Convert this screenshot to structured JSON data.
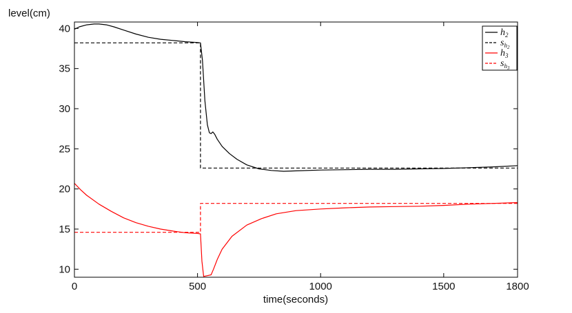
{
  "chart_data": {
    "type": "line",
    "title": "",
    "xlabel": "time(seconds)",
    "ylabel": "level(cm)",
    "xlim": [
      0,
      1800
    ],
    "ylim": [
      9,
      40.8
    ],
    "xticks": [
      0,
      500,
      1000,
      1500,
      1800
    ],
    "yticks": [
      10,
      15,
      20,
      25,
      30,
      35,
      40
    ],
    "grid": false,
    "legend_position": "top-right",
    "series": [
      {
        "name": "h2",
        "color": "#000000",
        "dash": "solid",
        "x": [
          0,
          20,
          50,
          80,
          100,
          130,
          160,
          200,
          250,
          300,
          350,
          400,
          450,
          500,
          512,
          520,
          530,
          540,
          548,
          555,
          562,
          570,
          580,
          600,
          630,
          660,
          700,
          750,
          800,
          850,
          900,
          1000,
          1100,
          1200,
          1300,
          1400,
          1500,
          1600,
          1700,
          1800
        ],
        "y": [
          39.9,
          40.2,
          40.45,
          40.55,
          40.55,
          40.45,
          40.2,
          39.8,
          39.3,
          38.9,
          38.65,
          38.5,
          38.35,
          38.25,
          38.2,
          36.0,
          31.0,
          28.0,
          27.0,
          26.9,
          27.1,
          26.8,
          26.2,
          25.3,
          24.4,
          23.7,
          23.0,
          22.5,
          22.3,
          22.2,
          22.25,
          22.35,
          22.4,
          22.45,
          22.45,
          22.5,
          22.55,
          22.65,
          22.75,
          22.9
        ]
      },
      {
        "name": "s_h2",
        "color": "#000000",
        "dash": "dashed",
        "x": [
          0,
          512,
          512,
          1800
        ],
        "y": [
          38.2,
          38.2,
          22.6,
          22.6
        ]
      },
      {
        "name": "h3",
        "color": "#ff0000",
        "dash": "solid",
        "x": [
          0,
          25,
          50,
          100,
          150,
          200,
          250,
          300,
          350,
          400,
          450,
          500,
          512,
          518,
          525,
          540,
          555,
          565,
          580,
          600,
          640,
          700,
          760,
          820,
          900,
          1000,
          1100,
          1200,
          1300,
          1400,
          1500,
          1600,
          1700,
          1800
        ],
        "y": [
          20.7,
          19.9,
          19.2,
          18.1,
          17.2,
          16.4,
          15.8,
          15.35,
          15.0,
          14.75,
          14.55,
          14.45,
          14.4,
          11.0,
          9.1,
          9.2,
          9.3,
          10.0,
          11.2,
          12.5,
          14.1,
          15.5,
          16.3,
          16.9,
          17.3,
          17.5,
          17.65,
          17.75,
          17.8,
          17.85,
          17.95,
          18.1,
          18.2,
          18.3
        ]
      },
      {
        "name": "s_h3",
        "color": "#ff0000",
        "dash": "dashed",
        "x": [
          0,
          512,
          512,
          1800
        ],
        "y": [
          14.6,
          14.6,
          18.2,
          18.2
        ]
      }
    ],
    "legend": [
      {
        "label_main": "h",
        "label_sub": "2",
        "color": "#000000",
        "dash": "solid"
      },
      {
        "label_main": "s",
        "label_sub": "h2",
        "color": "#000000",
        "dash": "dashed"
      },
      {
        "label_main": "h",
        "label_sub": "3",
        "color": "#ff0000",
        "dash": "solid"
      },
      {
        "label_main": "s",
        "label_sub": "h3",
        "color": "#ff0000",
        "dash": "dashed"
      }
    ]
  }
}
